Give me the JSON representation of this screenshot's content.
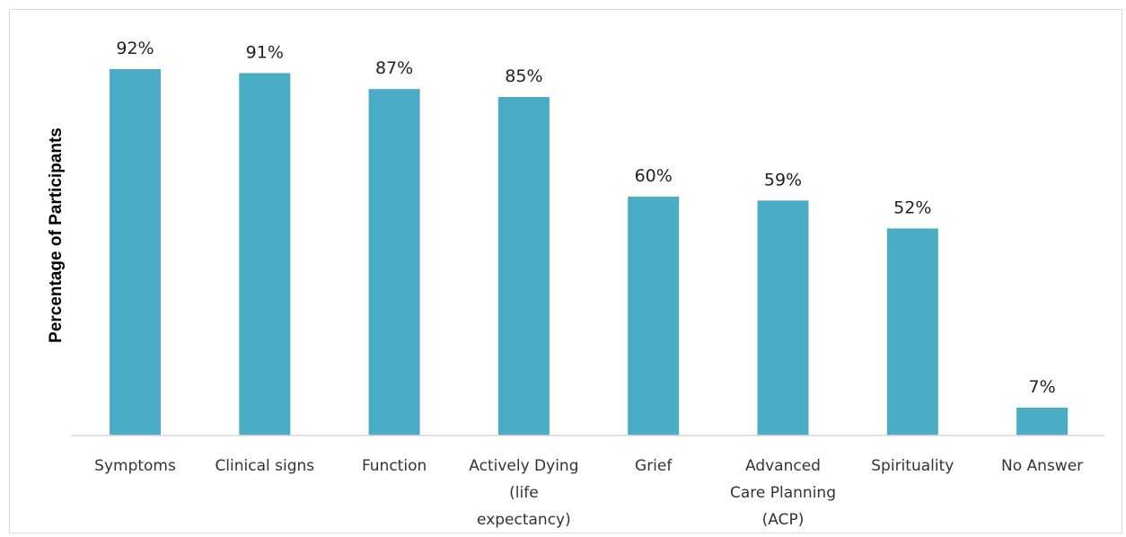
{
  "chart_data": {
    "type": "bar",
    "title": "",
    "xlabel": "",
    "ylabel": "Percentage of Participants",
    "categories": [
      [
        "Symptoms"
      ],
      [
        "Clinical signs"
      ],
      [
        "Function"
      ],
      [
        "Actively Dying",
        "(life",
        "expectancy)"
      ],
      [
        "Grief"
      ],
      [
        "Advanced",
        "Care Planning",
        "(ACP)"
      ],
      [
        "Spirituality"
      ],
      [
        "No Answer"
      ]
    ],
    "values": [
      92,
      91,
      87,
      85,
      60,
      59,
      52,
      7
    ],
    "value_labels": [
      "92%",
      "91%",
      "87%",
      "85%",
      "60%",
      "59%",
      "52%",
      "7%"
    ],
    "ylim": [
      0,
      100
    ],
    "grid": false,
    "legend": "none",
    "colors": {
      "bar": "#4bacc6",
      "axis": "#d9d9d9"
    }
  }
}
